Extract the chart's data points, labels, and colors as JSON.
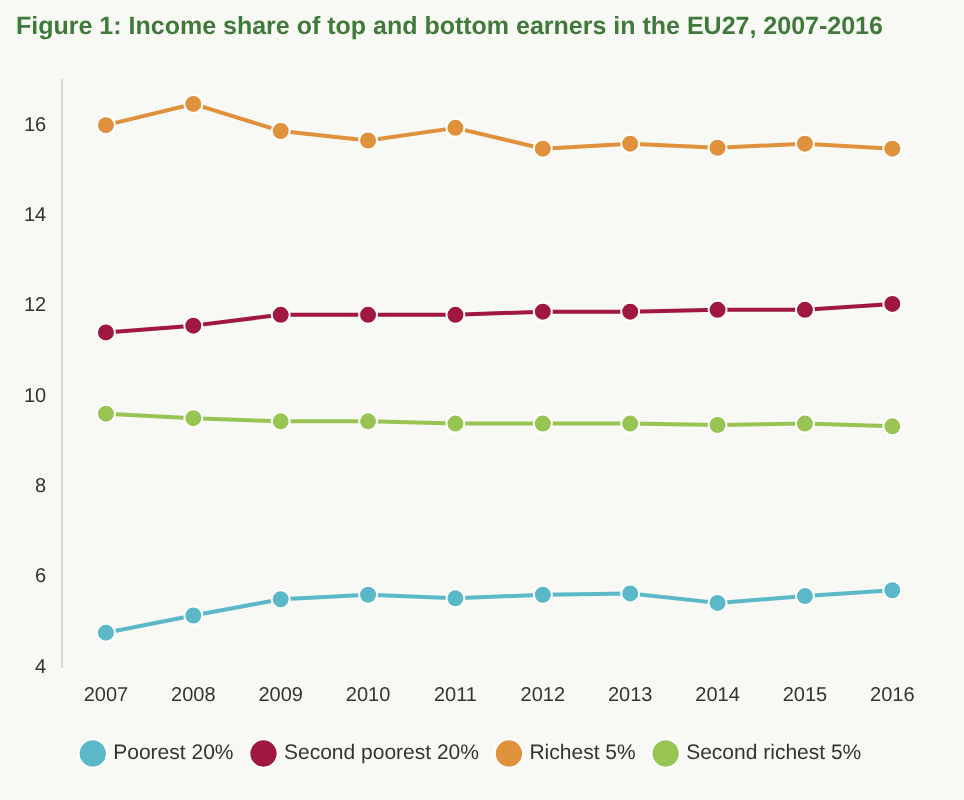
{
  "chart_data": {
    "type": "line",
    "title": "Figure 1: Income share of top and bottom earners in the EU27, 2007-2016",
    "categories": [
      "2007",
      "2008",
      "2009",
      "2010",
      "2011",
      "2012",
      "2013",
      "2014",
      "2015",
      "2016"
    ],
    "series": [
      {
        "name": "Poorest 20%",
        "color": "#5bb8c9",
        "values": [
          4.76,
          5.14,
          5.5,
          5.6,
          5.52,
          5.6,
          5.63,
          5.42,
          5.57,
          5.7
        ]
      },
      {
        "name": "Second poorest 20%",
        "color": "#a0173f",
        "values": [
          11.41,
          11.56,
          11.8,
          11.8,
          11.8,
          11.87,
          11.87,
          11.91,
          11.91,
          12.04
        ]
      },
      {
        "name": "Richest 5%",
        "color": "#e0913c",
        "values": [
          16.0,
          16.47,
          15.87,
          15.66,
          15.94,
          15.48,
          15.59,
          15.5,
          15.59,
          15.48
        ]
      },
      {
        "name": "Second richest 5%",
        "color": "#98c454",
        "values": [
          9.61,
          9.51,
          9.44,
          9.44,
          9.39,
          9.39,
          9.39,
          9.36,
          9.39,
          9.33
        ]
      }
    ],
    "ylim": [
      4,
      17
    ],
    "yticks": [
      4,
      6,
      8,
      10,
      12,
      14,
      16
    ],
    "grid": false,
    "legend": "bottom",
    "marker": "circle",
    "line_style": "solid"
  }
}
